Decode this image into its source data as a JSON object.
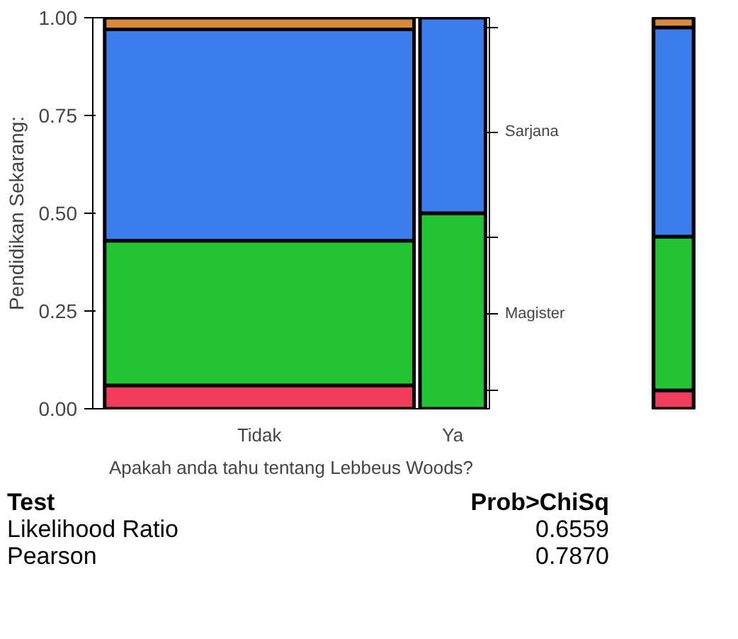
{
  "chart_data": {
    "type": "bar",
    "stacked": true,
    "xlabel": "Apakah anda tahu tentang Lebbeus Woods?",
    "ylabel": "Pendidikan Sekarang:",
    "categories": [
      "Tidak",
      "Ya",
      null
    ],
    "series": [
      {
        "color": "#f03c5a",
        "values": [
          0.06,
          0,
          0.047
        ]
      },
      {
        "name": "Magister",
        "color": "#23c431",
        "values": [
          0.37,
          0.5,
          0.393
        ]
      },
      {
        "name": "Sarjana",
        "color": "#3c7ded",
        "values": [
          0.54,
          0.5,
          0.535
        ]
      },
      {
        "color": "#d8893a",
        "values": [
          0.03,
          0,
          0.025
        ]
      }
    ],
    "ylim": [
      0,
      1
    ],
    "yticks": [
      {
        "value": 0,
        "label": "0.00"
      },
      {
        "value": 0.25,
        "label": "0.25"
      },
      {
        "value": 0.5,
        "label": "0.50"
      },
      {
        "value": 0.75,
        "label": "0.75"
      },
      {
        "value": 1,
        "label": "1.00"
      }
    ],
    "grid": false,
    "legend": "right",
    "annotations": [
      "Test",
      "Prob>ChiSq",
      "Likelihood Ratio",
      "0.6559",
      "Pearson",
      "0.7870"
    ]
  }
}
